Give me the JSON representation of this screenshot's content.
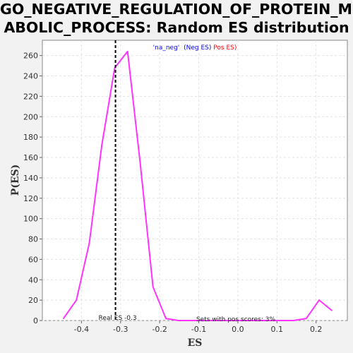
{
  "chart_data": {
    "type": "line",
    "title_lines": [
      "GO_NEGATIVE_REGULATION_OF_PROTEIN_MET",
      "ABOLIC_PROCESS: Random ES distribution"
    ],
    "xlabel": "ES",
    "ylabel": "P(ES)",
    "xlim": [
      -0.5,
      0.28
    ],
    "ylim": [
      0,
      275
    ],
    "xticks": [
      -0.4,
      -0.3,
      -0.2,
      -0.1,
      0.0,
      0.1,
      0.2
    ],
    "xtick_labels": [
      "-0.4",
      "-0.3",
      "-0.2",
      "-0.1",
      "0.0",
      "0.1",
      "0.2"
    ],
    "yticks": [
      0,
      20,
      40,
      60,
      80,
      100,
      120,
      140,
      160,
      180,
      200,
      220,
      240,
      260
    ],
    "ytick_labels": [
      "0",
      "20",
      "40",
      "60",
      "80",
      "100",
      "120",
      "140",
      "160",
      "180",
      "200",
      "220",
      "240",
      "260"
    ],
    "grid": true,
    "series": [
      {
        "color": "#ff33ff",
        "x": [
          -0.446,
          -0.413,
          -0.38,
          -0.348,
          -0.315,
          -0.282,
          -0.25,
          -0.217,
          -0.184,
          -0.152,
          -0.119,
          -0.086,
          -0.054,
          -0.021,
          0.012,
          0.044,
          0.077,
          0.11,
          0.142,
          0.175,
          0.208,
          0.24
        ],
        "y": [
          2,
          20,
          76,
          172,
          248,
          264,
          155,
          33,
          2,
          0,
          0,
          0,
          0,
          0,
          0,
          0,
          0,
          0,
          0,
          2,
          20,
          10
        ]
      }
    ],
    "real_es": {
      "value": -0.313,
      "label": "Real ES -0.3"
    },
    "legend": {
      "position": "top",
      "prefix": "'na_neg'",
      "neg": "(Neg ES)",
      "pos": "Pos ES)",
      "neg_color": "#0000ff",
      "pos_color": "#ff0000"
    },
    "annotation": "Sets with pos scores: 3%"
  }
}
